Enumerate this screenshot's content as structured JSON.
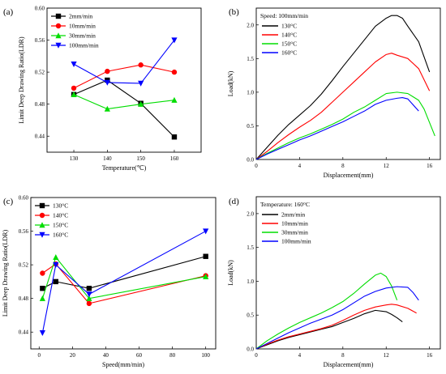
{
  "chart_data": [
    {
      "panel": "(a)",
      "type": "line",
      "xlabel": "Temperature(℃)",
      "ylabel": "Limit Deep Drawing Ratio(LDR)",
      "xlim": [
        122,
        168
      ],
      "ylim": [
        0.42,
        0.6
      ],
      "xticks": [
        130,
        140,
        150,
        160
      ],
      "yticks": [
        0.44,
        0.48,
        0.52,
        0.56,
        0.6
      ],
      "tick_decimals": 2,
      "legend": "top-left",
      "grid": false,
      "series": [
        {
          "name": "2mm/min",
          "color": "#000000",
          "marker": "square",
          "x": [
            130,
            140,
            150,
            160
          ],
          "y": [
            0.492,
            0.51,
            0.481,
            0.439
          ]
        },
        {
          "name": "10mm/min",
          "color": "#ff0000",
          "marker": "circle",
          "x": [
            130,
            140,
            150,
            160
          ],
          "y": [
            0.5,
            0.521,
            0.529,
            0.52
          ]
        },
        {
          "name": "30mm/min",
          "color": "#00dd00",
          "marker": "triangle-up",
          "x": [
            130,
            140,
            150,
            160
          ],
          "y": [
            0.492,
            0.474,
            0.48,
            0.485
          ]
        },
        {
          "name": "100mm/min",
          "color": "#0000ff",
          "marker": "triangle-down",
          "x": [
            130,
            140,
            150,
            160
          ],
          "y": [
            0.53,
            0.507,
            0.506,
            0.56
          ]
        }
      ]
    },
    {
      "panel": "(b)",
      "type": "line",
      "xlabel": "Displacement(mm)",
      "ylabel": "Load(kN)",
      "xlim": [
        0,
        17
      ],
      "ylim": [
        0,
        2.25
      ],
      "xticks": [
        0,
        4,
        8,
        12,
        16
      ],
      "yticks": [
        0.0,
        0.5,
        1.0,
        1.5,
        2.0
      ],
      "tick_decimals": 1,
      "legend": "top-left",
      "legend_title": "Speed: 100mm/min",
      "grid": false,
      "series": [
        {
          "name": "130°C",
          "color": "#000000",
          "x": [
            0,
            1,
            2,
            3,
            4,
            5,
            6,
            7,
            8,
            9,
            10,
            11,
            12,
            12.5,
            13,
            13.5,
            14,
            15,
            16
          ],
          "y": [
            0,
            0.18,
            0.36,
            0.52,
            0.66,
            0.8,
            0.97,
            1.17,
            1.38,
            1.58,
            1.78,
            1.98,
            2.1,
            2.14,
            2.14,
            2.1,
            1.98,
            1.75,
            1.3
          ]
        },
        {
          "name": "140°C",
          "color": "#ff0000",
          "x": [
            0,
            1,
            2,
            3,
            4,
            5,
            6,
            7,
            8,
            9,
            10,
            11,
            12,
            12.5,
            13,
            14,
            15,
            16
          ],
          "y": [
            0,
            0.12,
            0.25,
            0.37,
            0.48,
            0.58,
            0.7,
            0.85,
            1.0,
            1.15,
            1.3,
            1.45,
            1.56,
            1.58,
            1.55,
            1.5,
            1.35,
            1.02
          ]
        },
        {
          "name": "150°C",
          "color": "#00dd00",
          "x": [
            0,
            1,
            2,
            3,
            4,
            5,
            6,
            7,
            8,
            9,
            10,
            11,
            12,
            13,
            14,
            15,
            15.5,
            16,
            16.5
          ],
          "y": [
            0,
            0.09,
            0.17,
            0.25,
            0.32,
            0.38,
            0.45,
            0.52,
            0.6,
            0.7,
            0.78,
            0.88,
            0.98,
            1.0,
            0.98,
            0.88,
            0.75,
            0.55,
            0.35
          ]
        },
        {
          "name": "160°C",
          "color": "#0000ff",
          "x": [
            0,
            1,
            2,
            3,
            4,
            5,
            6,
            7,
            8,
            9,
            10,
            11,
            12,
            13,
            13.5,
            14,
            15
          ],
          "y": [
            0,
            0.08,
            0.15,
            0.22,
            0.29,
            0.35,
            0.42,
            0.49,
            0.56,
            0.64,
            0.72,
            0.82,
            0.88,
            0.91,
            0.92,
            0.9,
            0.72
          ]
        }
      ]
    },
    {
      "panel": "(c)",
      "type": "line",
      "xlabel": "Speed(mm/min)",
      "ylabel": "Limit Deep Drawing Ratio(LDR)",
      "xlim": [
        -5,
        106
      ],
      "ylim": [
        0.42,
        0.6
      ],
      "xticks": [
        0,
        20,
        40,
        60,
        80,
        100
      ],
      "yticks": [
        0.44,
        0.48,
        0.52,
        0.56,
        0.6
      ],
      "tick_decimals": 2,
      "legend": "top-left",
      "grid": false,
      "series": [
        {
          "name": "130°C",
          "color": "#000000",
          "marker": "square",
          "x": [
            2,
            10,
            30,
            100
          ],
          "y": [
            0.492,
            0.5,
            0.492,
            0.53
          ]
        },
        {
          "name": "140°C",
          "color": "#ff0000",
          "marker": "circle",
          "x": [
            2,
            10,
            30,
            100
          ],
          "y": [
            0.51,
            0.521,
            0.474,
            0.507
          ]
        },
        {
          "name": "150°C",
          "color": "#00dd00",
          "marker": "triangle-up",
          "x": [
            2,
            10,
            30,
            100
          ],
          "y": [
            0.48,
            0.529,
            0.48,
            0.506
          ]
        },
        {
          "name": "160°C",
          "color": "#0000ff",
          "marker": "triangle-down",
          "x": [
            2,
            10,
            30,
            100
          ],
          "y": [
            0.439,
            0.52,
            0.485,
            0.56
          ]
        }
      ]
    },
    {
      "panel": "(d)",
      "type": "line",
      "xlabel": "Displacement(mm)",
      "ylabel": "Load(kN)",
      "xlim": [
        0,
        17
      ],
      "ylim": [
        0,
        2.25
      ],
      "xticks": [
        0,
        4,
        8,
        12,
        16
      ],
      "yticks": [
        0.0,
        0.5,
        1.0,
        1.5,
        2.0
      ],
      "tick_decimals": 1,
      "legend": "top-left",
      "legend_title": "Temperature: 160°C",
      "grid": false,
      "series": [
        {
          "name": "2mm/min",
          "color": "#000000",
          "x": [
            0,
            1,
            2,
            3,
            4,
            5,
            6,
            7,
            8,
            9,
            10,
            11,
            12,
            12.5,
            13,
            13.5
          ],
          "y": [
            0,
            0.06,
            0.12,
            0.17,
            0.21,
            0.25,
            0.29,
            0.33,
            0.39,
            0.45,
            0.52,
            0.57,
            0.55,
            0.51,
            0.46,
            0.4
          ]
        },
        {
          "name": "10mm/min",
          "color": "#ff0000",
          "x": [
            0,
            1,
            2,
            3,
            4,
            5,
            6,
            7,
            8,
            9,
            10,
            11,
            12,
            12.5,
            13,
            14,
            14.8
          ],
          "y": [
            0,
            0.07,
            0.13,
            0.18,
            0.22,
            0.26,
            0.3,
            0.35,
            0.42,
            0.5,
            0.57,
            0.62,
            0.65,
            0.66,
            0.65,
            0.6,
            0.53
          ]
        },
        {
          "name": "30mm/min",
          "color": "#00dd00",
          "x": [
            0,
            1,
            2,
            3,
            4,
            5,
            6,
            7,
            8,
            9,
            10,
            11,
            11.5,
            12,
            12.5,
            13
          ],
          "y": [
            0,
            0.12,
            0.22,
            0.31,
            0.39,
            0.46,
            0.53,
            0.61,
            0.7,
            0.82,
            0.96,
            1.09,
            1.12,
            1.07,
            0.93,
            0.72
          ]
        },
        {
          "name": "100mm/min",
          "color": "#0000ff",
          "x": [
            0,
            1,
            2,
            3,
            4,
            5,
            6,
            7,
            8,
            9,
            10,
            11,
            12,
            13,
            14,
            14.5,
            15
          ],
          "y": [
            0,
            0.08,
            0.16,
            0.24,
            0.31,
            0.38,
            0.44,
            0.5,
            0.58,
            0.68,
            0.78,
            0.85,
            0.9,
            0.92,
            0.91,
            0.83,
            0.72
          ]
        }
      ]
    }
  ]
}
